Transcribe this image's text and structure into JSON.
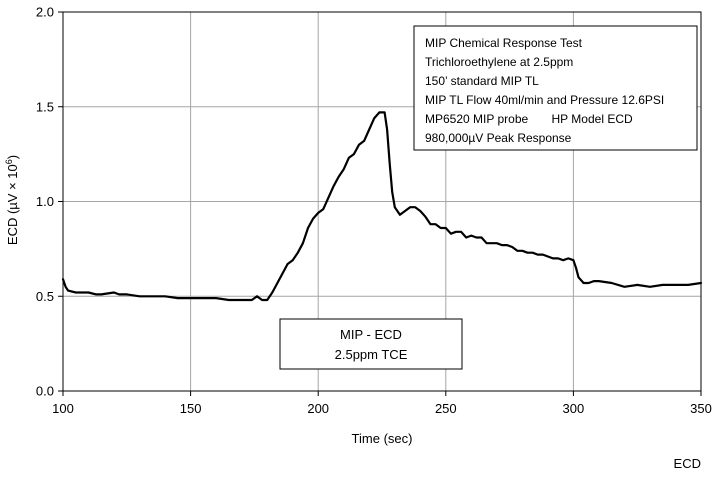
{
  "chart_data": {
    "type": "line",
    "title": "",
    "xlabel": "Time (sec)",
    "ylabel": {
      "prefix": "ECD (µV × 10",
      "exponent": "6",
      "suffix": ")"
    },
    "xlim": [
      100,
      350
    ],
    "ylim": [
      0.0,
      2.0
    ],
    "x_ticks": [
      100,
      150,
      200,
      250,
      300,
      350
    ],
    "y_ticks": [
      0.0,
      0.5,
      1.0,
      1.5,
      2.0
    ],
    "y_tick_labels": [
      "0.0",
      "0.5",
      "1.0",
      "1.5",
      "2.0"
    ],
    "grid": true,
    "series": [
      {
        "name": "ECD",
        "color": "#000000",
        "x": [
          100,
          101,
          102,
          105,
          110,
          113,
          115,
          120,
          122,
          125,
          130,
          135,
          140,
          145,
          150,
          155,
          160,
          165,
          170,
          174,
          176,
          178,
          180,
          182,
          184,
          186,
          188,
          190,
          192,
          194,
          196,
          198,
          200,
          202,
          204,
          206,
          208,
          210,
          212,
          214,
          216,
          218,
          220,
          222,
          224,
          226,
          227,
          228,
          229,
          230,
          232,
          234,
          236,
          238,
          240,
          242,
          244,
          246,
          248,
          250,
          252,
          254,
          256,
          258,
          260,
          262,
          264,
          266,
          268,
          270,
          272,
          274,
          276,
          278,
          280,
          282,
          284,
          286,
          288,
          290,
          292,
          294,
          296,
          298,
          300,
          301,
          302,
          304,
          306,
          308,
          310,
          315,
          320,
          325,
          330,
          335,
          340,
          345,
          350
        ],
        "y": [
          0.59,
          0.55,
          0.53,
          0.52,
          0.52,
          0.51,
          0.51,
          0.52,
          0.51,
          0.51,
          0.5,
          0.5,
          0.5,
          0.49,
          0.49,
          0.49,
          0.49,
          0.48,
          0.48,
          0.48,
          0.5,
          0.48,
          0.48,
          0.52,
          0.57,
          0.62,
          0.67,
          0.69,
          0.73,
          0.78,
          0.86,
          0.91,
          0.94,
          0.96,
          1.02,
          1.08,
          1.13,
          1.17,
          1.23,
          1.25,
          1.3,
          1.32,
          1.38,
          1.44,
          1.47,
          1.47,
          1.38,
          1.2,
          1.05,
          0.97,
          0.93,
          0.95,
          0.97,
          0.97,
          0.95,
          0.92,
          0.88,
          0.88,
          0.86,
          0.86,
          0.83,
          0.84,
          0.84,
          0.81,
          0.82,
          0.81,
          0.81,
          0.78,
          0.78,
          0.78,
          0.77,
          0.77,
          0.76,
          0.74,
          0.74,
          0.73,
          0.73,
          0.72,
          0.72,
          0.71,
          0.7,
          0.7,
          0.69,
          0.7,
          0.69,
          0.65,
          0.6,
          0.57,
          0.57,
          0.58,
          0.58,
          0.57,
          0.55,
          0.56,
          0.55,
          0.56,
          0.56,
          0.56,
          0.57
        ]
      }
    ],
    "info_box": {
      "lines": [
        "MIP Chemical Response Test",
        "Trichloroethylene at 2.5ppm",
        "150’ standard MIP TL",
        "MIP TL Flow 40ml/min and Pressure 12.6PSI",
        "MP6520 MIP probe       HP Model ECD",
        "980,000µV Peak Response"
      ]
    },
    "label_box": {
      "lines": [
        "MIP - ECD",
        "2.5ppm TCE"
      ]
    },
    "legend": {
      "text": "ECD",
      "placement": "bottom-right"
    }
  }
}
